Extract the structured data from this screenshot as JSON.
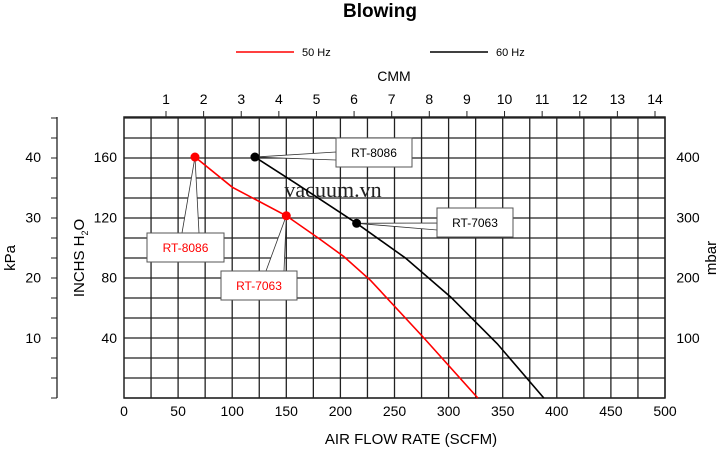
{
  "chart_data": {
    "type": "line",
    "title": "Blowing",
    "xlabel": "AIR FLOW RATE (SCFM)",
    "x2label": "CMM",
    "ylabel": "INCHS H2O",
    "ylabel_main": "INCHS H",
    "ylabel_sub": "2",
    "ylabel_tail": "O",
    "y_left_outer_label": "kPa",
    "y_right_label": "mbar",
    "xlim": [
      0,
      500
    ],
    "ylim": [
      0,
      186.7
    ],
    "grid": true,
    "x_ticks": [
      "0",
      "50",
      "100",
      "150",
      "200",
      "250",
      "300",
      "350",
      "400",
      "450",
      "500"
    ],
    "x2_ticks": [
      "1",
      "2",
      "3",
      "4",
      "5",
      "6",
      "7",
      "8",
      "9",
      "10",
      "11",
      "12",
      "13",
      "14"
    ],
    "y_ticks": [
      "40",
      "80",
      "120",
      "160"
    ],
    "kpa_ticks": [
      "10",
      "20",
      "30",
      "40"
    ],
    "mbar_ticks": [
      "100",
      "200",
      "300",
      "400"
    ],
    "legend_position": "top",
    "series": [
      {
        "name": "50 Hz",
        "color": "#ff0000",
        "x": [
          65.6,
          100,
          150,
          180,
          203,
          228,
          277,
          327
        ],
        "y": [
          160,
          140,
          121,
          106,
          94,
          78,
          40,
          0
        ]
      },
      {
        "name": "60 Hz",
        "color": "#000000",
        "x": [
          121,
          160,
          215,
          260,
          302,
          345,
          388
        ],
        "y": [
          160,
          142,
          116,
          93,
          67,
          36,
          0
        ]
      }
    ],
    "annotations": [
      {
        "text": "RT-8086",
        "series": "50 Hz",
        "x": 65.6,
        "y": 160,
        "color": "#ff0000"
      },
      {
        "text": "RT-7063",
        "series": "50 Hz",
        "x": 150,
        "y": 121,
        "color": "#ff0000"
      },
      {
        "text": "RT-8086",
        "series": "60 Hz",
        "x": 121,
        "y": 160,
        "color": "#000000"
      },
      {
        "text": "RT-7063",
        "series": "60 Hz",
        "x": 215,
        "y": 116,
        "color": "#000000"
      }
    ],
    "watermark": "vacuum.vn"
  }
}
